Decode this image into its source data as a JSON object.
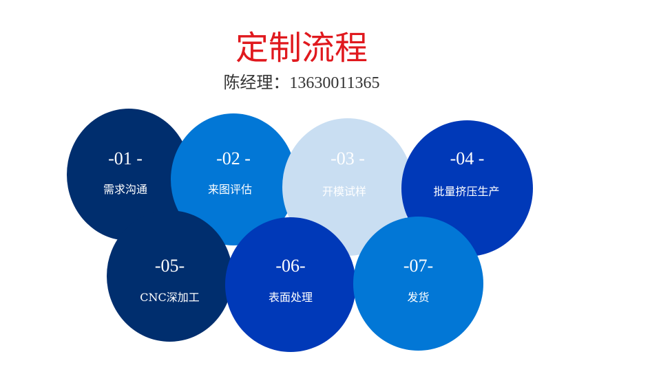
{
  "title": "定制流程",
  "contact": "陈经理：13630011365",
  "colors": {
    "title": "#e0191e",
    "navy": "#002e6e",
    "blue": "#0277d6",
    "light": "#c9def2",
    "royal": "#0039b8"
  },
  "steps": [
    {
      "num": "-01 -",
      "label": "需求沟通",
      "color": "#002e6e"
    },
    {
      "num": "-02 -",
      "label": "来图评估",
      "color": "#0277d6"
    },
    {
      "num": "-03 -",
      "label": "开模试样",
      "color": "#c9def2"
    },
    {
      "num": "-04 -",
      "label": "批量挤压生产",
      "color": "#0039b8"
    },
    {
      "num": "-05-",
      "label": "CNC深加工",
      "color": "#002e6e"
    },
    {
      "num": "-06-",
      "label": "表面处理",
      "color": "#0039b8"
    },
    {
      "num": "-07-",
      "label": "发货",
      "color": "#0277d6"
    }
  ]
}
